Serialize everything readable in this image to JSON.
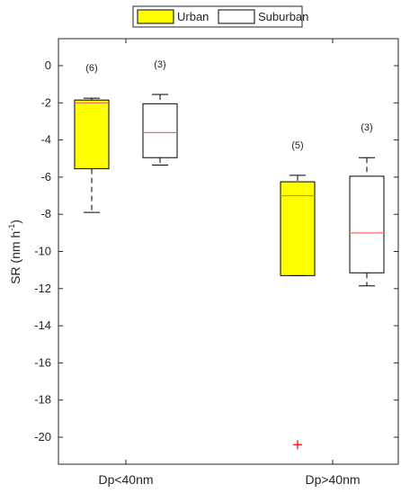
{
  "chart_data": {
    "type": "box",
    "categories": [
      "Dp<40nm",
      "Dp>40nm"
    ],
    "ylabel_main": "SR (nm h",
    "ylabel_sup": "-1",
    "ylabel_close": ")",
    "ylim": [
      -21.5,
      1.5
    ],
    "yticks": [
      0,
      -2,
      -4,
      -6,
      -8,
      -10,
      -12,
      -14,
      -16,
      -18,
      -20
    ],
    "ytick_labels": [
      "0",
      "-2",
      "-4",
      "-6",
      "-8",
      "-10",
      "-12",
      "-14",
      "-16",
      "-18",
      "-20"
    ],
    "legend": {
      "position": "top",
      "entries": [
        "Urban",
        "Suburban"
      ]
    },
    "series": [
      {
        "name": "Urban",
        "fill": "#ffff00",
        "boxes": [
          {
            "category": "Dp<40nm",
            "q1": -5.55,
            "median": -2.0,
            "q3": -1.85,
            "whisker_low": -7.9,
            "whisker_high": -1.75,
            "n_label": "(6)",
            "outliers": []
          },
          {
            "category": "Dp>40nm",
            "q1": -11.3,
            "median": -7.0,
            "q3": -6.25,
            "whisker_low": -11.3,
            "whisker_high": -5.9,
            "n_label": "(5)",
            "outliers": [
              -20.4
            ]
          }
        ]
      },
      {
        "name": "Suburban",
        "fill": "#ffffff",
        "boxes": [
          {
            "category": "Dp<40nm",
            "q1": -4.95,
            "median": -3.6,
            "q3": -2.05,
            "whisker_low": -5.35,
            "whisker_high": -1.55,
            "n_label": "(3)",
            "outliers": []
          },
          {
            "category": "Dp>40nm",
            "q1": -11.15,
            "median": -9.0,
            "q3": -5.95,
            "whisker_low": -11.85,
            "whisker_high": -4.95,
            "n_label": "(3)",
            "outliers": []
          }
        ]
      }
    ],
    "colors": {
      "median": "#ff6666",
      "outlier": "#ff0000",
      "box_edge": "#000000",
      "axis": "#262626"
    }
  }
}
